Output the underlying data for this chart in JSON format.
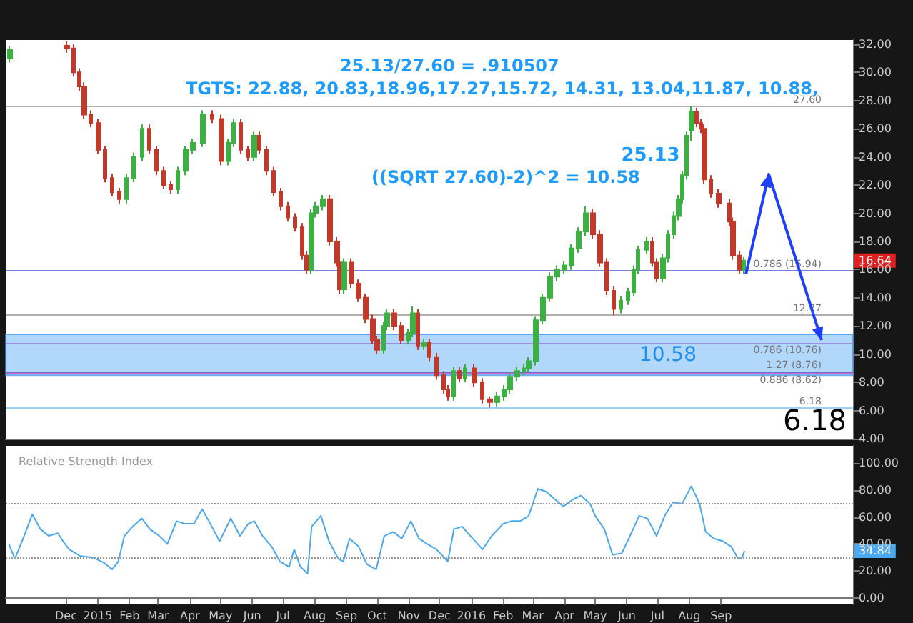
{
  "chart_data": [
    {
      "type": "candlestick",
      "marker": "none",
      "tick_labels": "y",
      "grid": false,
      "xlim": [
        "2014-10-03",
        "2017-01-08"
      ],
      "ylim": [
        4,
        32.3
      ],
      "yticks": [
        {
          "value": 4,
          "label": "4.00"
        },
        {
          "value": 6,
          "label": "6.00"
        },
        {
          "value": 8,
          "label": "8.00"
        },
        {
          "value": 10,
          "label": "10.00"
        },
        {
          "value": 12,
          "label": "12.00"
        },
        {
          "value": 14,
          "label": "14.00"
        },
        {
          "value": 16,
          "label": "16.00"
        },
        {
          "value": 18,
          "label": "18.00"
        },
        {
          "value": 20,
          "label": "20.00"
        },
        {
          "value": 22,
          "label": "22.00"
        },
        {
          "value": 24,
          "label": "24.00"
        },
        {
          "value": 26,
          "label": "26.00"
        },
        {
          "value": 28,
          "label": "28.00"
        },
        {
          "value": 30,
          "label": "30.00"
        },
        {
          "value": 32,
          "label": "32.00"
        }
      ],
      "x": [
        "2014-10-07",
        "2014-12-02",
        "2014-12-08",
        "2014-12-14",
        "2014-12-19",
        "2014-12-25",
        "2015-01-02",
        "2015-01-08",
        "2015-01-15",
        "2015-01-22",
        "2015-01-29",
        "2015-02-05",
        "2015-02-13",
        "2015-02-20",
        "2015-02-27",
        "2015-03-06",
        "2015-03-13",
        "2015-03-20",
        "2015-03-28",
        "2015-04-04",
        "2015-04-14",
        "2015-04-23",
        "2015-05-02",
        "2015-05-09",
        "2015-05-14",
        "2015-05-21",
        "2015-05-28",
        "2015-06-03",
        "2015-06-08",
        "2015-06-15",
        "2015-06-22",
        "2015-06-29",
        "2015-07-06",
        "2015-07-13",
        "2015-07-20",
        "2015-07-24",
        "2015-07-29",
        "2015-08-02",
        "2015-08-09",
        "2015-08-16",
        "2015-08-23",
        "2015-08-26",
        "2015-08-30",
        "2015-09-06",
        "2015-09-13",
        "2015-09-20",
        "2015-09-27",
        "2015-10-01",
        "2015-10-07",
        "2015-10-11",
        "2015-10-18",
        "2015-10-25",
        "2015-11-01",
        "2015-11-05",
        "2015-11-10",
        "2015-11-16",
        "2015-11-21",
        "2015-11-28",
        "2015-12-05",
        "2015-12-09",
        "2015-12-15",
        "2015-12-20",
        "2015-12-26",
        "2016-01-04",
        "2016-01-12",
        "2016-01-19",
        "2016-01-26",
        "2016-02-02",
        "2016-02-08",
        "2016-02-15",
        "2016-02-21",
        "2016-02-26",
        "2016-03-04",
        "2016-03-11",
        "2016-03-18",
        "2016-03-25",
        "2016-04-01",
        "2016-04-08",
        "2016-04-15",
        "2016-04-22",
        "2016-04-29",
        "2016-05-06",
        "2016-05-12",
        "2016-05-19",
        "2016-05-26",
        "2016-06-02",
        "2016-06-08",
        "2016-06-12",
        "2016-06-20",
        "2016-06-26",
        "2016-06-30",
        "2016-07-06",
        "2016-07-11",
        "2016-07-17",
        "2016-07-22",
        "2016-07-25",
        "2016-07-29",
        "2016-08-03",
        "2016-08-08",
        "2016-08-12",
        "2016-08-16",
        "2016-08-22",
        "2016-08-30",
        "2016-09-09",
        "2016-09-13",
        "2016-09-19",
        "2016-09-23"
      ],
      "ohlc": [
        [
          31.0,
          31.9,
          30.7,
          31.6
        ],
        [
          31.9,
          32.2,
          31.4,
          31.7
        ],
        [
          31.7,
          32.0,
          29.7,
          30.0
        ],
        [
          30.0,
          30.3,
          28.7,
          29.0
        ],
        [
          29.0,
          29.3,
          26.7,
          27.0
        ],
        [
          27.0,
          27.3,
          26.1,
          26.4
        ],
        [
          26.4,
          26.7,
          24.2,
          24.5
        ],
        [
          24.5,
          24.8,
          22.2,
          22.5
        ],
        [
          22.5,
          22.8,
          21.2,
          21.5
        ],
        [
          21.5,
          21.8,
          20.7,
          21.0
        ],
        [
          21.0,
          22.8,
          20.7,
          22.5
        ],
        [
          22.5,
          24.3,
          22.2,
          24.0
        ],
        [
          24.0,
          26.3,
          23.7,
          26.0
        ],
        [
          26.0,
          26.3,
          24.2,
          24.5
        ],
        [
          24.5,
          24.8,
          22.7,
          23.0
        ],
        [
          23.0,
          23.3,
          21.7,
          22.0
        ],
        [
          22.0,
          22.3,
          21.4,
          21.7
        ],
        [
          21.7,
          23.3,
          21.4,
          23.0
        ],
        [
          23.0,
          24.8,
          22.7,
          24.5
        ],
        [
          24.5,
          25.3,
          24.2,
          25.0
        ],
        [
          25.0,
          27.3,
          24.7,
          27.0
        ],
        [
          27.0,
          27.3,
          26.4,
          26.7
        ],
        [
          26.7,
          27.0,
          23.4,
          23.7
        ],
        [
          23.7,
          25.3,
          23.4,
          25.0
        ],
        [
          25.0,
          26.7,
          24.7,
          26.4
        ],
        [
          26.4,
          26.7,
          24.2,
          24.5
        ],
        [
          24.5,
          24.8,
          23.7,
          24.0
        ],
        [
          24.0,
          25.8,
          23.7,
          25.5
        ],
        [
          25.5,
          25.8,
          24.2,
          24.5
        ],
        [
          24.5,
          24.8,
          22.7,
          23.0
        ],
        [
          23.0,
          23.3,
          21.2,
          21.5
        ],
        [
          21.5,
          21.8,
          20.2,
          20.5
        ],
        [
          20.5,
          20.8,
          19.4,
          19.7
        ],
        [
          19.7,
          20.0,
          18.7,
          19.0
        ],
        [
          19.0,
          19.3,
          16.7,
          17.0
        ],
        [
          17.0,
          17.3,
          15.7,
          16.0
        ],
        [
          16.0,
          20.3,
          15.7,
          20.0
        ],
        [
          20.0,
          20.8,
          19.7,
          20.5
        ],
        [
          20.5,
          21.3,
          20.2,
          21.0
        ],
        [
          21.0,
          21.3,
          17.7,
          18.0
        ],
        [
          18.0,
          18.3,
          16.2,
          16.5
        ],
        [
          16.5,
          16.8,
          14.3,
          14.6
        ],
        [
          14.6,
          16.8,
          14.3,
          16.5
        ],
        [
          16.5,
          16.8,
          14.7,
          15.0
        ],
        [
          15.0,
          15.3,
          13.7,
          14.0
        ],
        [
          14.0,
          14.3,
          12.2,
          12.5
        ],
        [
          12.5,
          12.8,
          10.7,
          11.0
        ],
        [
          11.0,
          11.3,
          10.0,
          10.3
        ],
        [
          10.3,
          12.3,
          10.0,
          12.0
        ],
        [
          12.0,
          13.2,
          11.7,
          12.9
        ],
        [
          12.9,
          13.2,
          11.7,
          12.0
        ],
        [
          12.0,
          12.3,
          10.7,
          11.0
        ],
        [
          11.0,
          11.8,
          10.7,
          11.5
        ],
        [
          11.5,
          13.4,
          11.2,
          12.9
        ],
        [
          12.9,
          13.2,
          10.3,
          10.6
        ],
        [
          10.6,
          11.1,
          10.3,
          10.8
        ],
        [
          10.8,
          11.1,
          9.5,
          9.8
        ],
        [
          9.8,
          10.1,
          8.2,
          8.5
        ],
        [
          8.5,
          8.8,
          7.2,
          7.5
        ],
        [
          7.5,
          7.8,
          6.7,
          7.0
        ],
        [
          7.0,
          9.1,
          6.7,
          8.8
        ],
        [
          8.8,
          9.1,
          8.0,
          8.3
        ],
        [
          8.3,
          9.3,
          8.0,
          9.0
        ],
        [
          9.0,
          9.3,
          7.7,
          8.0
        ],
        [
          8.0,
          8.3,
          6.5,
          6.8
        ],
        [
          6.8,
          7.0,
          6.2,
          6.6
        ],
        [
          6.6,
          7.3,
          6.3,
          7.0
        ],
        [
          7.0,
          7.8,
          6.7,
          7.5
        ],
        [
          7.5,
          8.7,
          7.2,
          8.4
        ],
        [
          8.4,
          9.1,
          8.1,
          8.8
        ],
        [
          8.8,
          9.3,
          8.5,
          9.0
        ],
        [
          9.0,
          9.8,
          8.7,
          9.5
        ],
        [
          9.5,
          12.7,
          9.2,
          12.4
        ],
        [
          12.4,
          14.3,
          12.1,
          14.0
        ],
        [
          14.0,
          15.8,
          13.7,
          15.5
        ],
        [
          15.5,
          16.3,
          15.2,
          16.0
        ],
        [
          16.0,
          16.6,
          15.7,
          16.3
        ],
        [
          16.3,
          17.8,
          16.0,
          17.5
        ],
        [
          17.5,
          19.0,
          17.2,
          18.7
        ],
        [
          18.7,
          20.5,
          18.4,
          20.0
        ],
        [
          20.0,
          20.3,
          18.2,
          18.5
        ],
        [
          18.5,
          18.8,
          16.2,
          16.5
        ],
        [
          16.5,
          16.8,
          14.2,
          14.5
        ],
        [
          14.5,
          14.8,
          12.77,
          13.2
        ],
        [
          13.2,
          14.1,
          12.9,
          13.8
        ],
        [
          13.8,
          14.7,
          13.5,
          14.4
        ],
        [
          14.4,
          16.3,
          14.1,
          16.0
        ],
        [
          16.0,
          17.7,
          15.7,
          17.4
        ],
        [
          17.4,
          18.3,
          17.1,
          18.0
        ],
        [
          18.0,
          18.3,
          16.2,
          16.5
        ],
        [
          16.5,
          16.8,
          15.1,
          15.4
        ],
        [
          15.4,
          17.1,
          15.1,
          16.8
        ],
        [
          16.8,
          18.8,
          16.5,
          18.5
        ],
        [
          18.5,
          20.1,
          18.2,
          19.8
        ],
        [
          19.8,
          21.3,
          19.5,
          21.0
        ],
        [
          21.0,
          23.0,
          20.7,
          22.7
        ],
        [
          22.7,
          25.8,
          22.4,
          25.5
        ],
        [
          25.9,
          27.6,
          25.13,
          27.2
        ],
        [
          27.2,
          27.5,
          26.1,
          26.4
        ],
        [
          26.4,
          26.7,
          25.7,
          26.0
        ],
        [
          26.0,
          26.3,
          22.1,
          22.4
        ],
        [
          22.4,
          22.7,
          21.1,
          21.4
        ],
        [
          21.4,
          21.7,
          20.4,
          20.7
        ],
        [
          20.7,
          21.0,
          19.1,
          19.4
        ],
        [
          19.4,
          19.7,
          16.7,
          17.0
        ],
        [
          17.0,
          17.3,
          15.7,
          16.0
        ],
        [
          16.0,
          16.9,
          15.7,
          16.64
        ]
      ],
      "ref_lines": [
        {
          "axis": "y",
          "value": 27.6,
          "label": "27.60",
          "color": "#b0b0b0"
        },
        {
          "axis": "y",
          "value": 15.94,
          "label": "0.786 (15.94)",
          "color": "#7b7bd8"
        },
        {
          "axis": "y",
          "value": 12.77,
          "label": "12.77",
          "color": "#b0b0b0"
        },
        {
          "axis": "y",
          "value": 10.76,
          "label": "0.786 (10.76)",
          "color": "#9a8fe0"
        },
        {
          "axis": "y",
          "value": 8.76,
          "label": "1.27 (8.76)",
          "color": "#6b6bd0"
        },
        {
          "axis": "y",
          "value": 8.62,
          "label": "0.886 (8.62)",
          "color": "#d36bd3"
        },
        {
          "axis": "y",
          "value": 6.18,
          "label": "6.18",
          "color": "#9fd0f0"
        }
      ],
      "bands": [
        {
          "axis": "y",
          "from": 8.5,
          "to": 11.4,
          "label": "10.58",
          "color": "#90c8f8"
        }
      ],
      "annotations": [
        "25.13/27.60 = .910507",
        "TGTS: 22.88, 20.83,18.96,17.27,15.72, 14.31, 13.04,11.87, 10.88,",
        "((SQRT 27.60)-2)^2 = 10.58",
        "6.18",
        {
          "text": "25.13",
          "x": "2016-08-03",
          "y": 25.13
        },
        {
          "text": "16.64",
          "y": 16.64
        }
      ]
    },
    {
      "type": "line",
      "title": "Relative Strength Index",
      "marker": "none",
      "xlim": [
        "2014-10-03",
        "2017-01-08"
      ],
      "ylim": [
        -5,
        113
      ],
      "yticks": [
        {
          "value": 0,
          "label": "0.00"
        },
        {
          "value": 20,
          "label": "20.00"
        },
        {
          "value": 40,
          "label": "40.00"
        },
        {
          "value": 60,
          "label": "60.00"
        },
        {
          "value": 80,
          "label": "80.00"
        },
        {
          "value": 100,
          "label": "100.00"
        }
      ],
      "xticks": [
        {
          "value": "2014-12-01",
          "label": "Dec"
        },
        {
          "value": "2015-01-01",
          "label": "2015"
        },
        {
          "value": "2015-02-01",
          "label": "Feb"
        },
        {
          "value": "2015-03-01",
          "label": "Mar"
        },
        {
          "value": "2015-04-01",
          "label": "Apr"
        },
        {
          "value": "2015-05-01",
          "label": "May"
        },
        {
          "value": "2015-06-01",
          "label": "Jun"
        },
        {
          "value": "2015-07-01",
          "label": "Jul"
        },
        {
          "value": "2015-08-01",
          "label": "Aug"
        },
        {
          "value": "2015-09-01",
          "label": "Sep"
        },
        {
          "value": "2015-10-01",
          "label": "Oct"
        },
        {
          "value": "2015-11-01",
          "label": "Nov"
        },
        {
          "value": "2015-12-01",
          "label": "Dec"
        },
        {
          "value": "2016-01-01",
          "label": "2016"
        },
        {
          "value": "2016-02-01",
          "label": "Feb"
        },
        {
          "value": "2016-03-01",
          "label": "Mar"
        },
        {
          "value": "2016-04-01",
          "label": "Apr"
        },
        {
          "value": "2016-05-01",
          "label": "May"
        },
        {
          "value": "2016-06-01",
          "label": "Jun"
        },
        {
          "value": "2016-07-01",
          "label": "Jul"
        },
        {
          "value": "2016-08-01",
          "label": "Aug"
        },
        {
          "value": "2016-09-01",
          "label": "Sep"
        }
      ],
      "series": [
        {
          "color": "#4aa8f0",
          "x": [
            "2014-10-06",
            "2014-10-12",
            "2014-10-20",
            "2014-10-29",
            "2014-11-06",
            "2014-11-14",
            "2014-11-23",
            "2014-11-28",
            "2014-12-04",
            "2014-12-15",
            "2014-12-27",
            "2015-01-07",
            "2015-01-15",
            "2015-01-21",
            "2015-01-27",
            "2015-02-04",
            "2015-02-13",
            "2015-02-21",
            "2015-03-02",
            "2015-03-10",
            "2015-03-19",
            "2015-03-27",
            "2015-04-05",
            "2015-04-13",
            "2015-04-21",
            "2015-04-30",
            "2015-05-11",
            "2015-05-20",
            "2015-05-28",
            "2015-06-03",
            "2015-06-11",
            "2015-06-20",
            "2015-06-28",
            "2015-07-07",
            "2015-07-12",
            "2015-07-18",
            "2015-07-25",
            "2015-07-29",
            "2015-08-07",
            "2015-08-15",
            "2015-08-24",
            "2015-08-29",
            "2015-09-04",
            "2015-09-13",
            "2015-09-21",
            "2015-09-30",
            "2015-10-08",
            "2015-10-17",
            "2015-10-25",
            "2015-11-03",
            "2015-11-11",
            "2015-11-19",
            "2015-11-28",
            "2015-12-09",
            "2015-12-15",
            "2015-12-23",
            "2015-12-31",
            "2016-01-12",
            "2016-01-21",
            "2016-02-01",
            "2016-02-09",
            "2016-02-18",
            "2016-02-26",
            "2016-03-06",
            "2016-03-14",
            "2016-03-23",
            "2016-03-31",
            "2016-04-09",
            "2016-04-17",
            "2016-04-26",
            "2016-05-01",
            "2016-05-10",
            "2016-05-18",
            "2016-05-27",
            "2016-06-04",
            "2016-06-13",
            "2016-06-21",
            "2016-06-30",
            "2016-07-08",
            "2016-07-16",
            "2016-07-25",
            "2016-08-03",
            "2016-08-11",
            "2016-08-17",
            "2016-08-25",
            "2016-09-03",
            "2016-09-11",
            "2016-09-17",
            "2016-09-21",
            "2016-09-24"
          ],
          "values": [
            40,
            29,
            44,
            62,
            51,
            46,
            48,
            42,
            36,
            31,
            30,
            26,
            21,
            27,
            46,
            53,
            59,
            51,
            46,
            40,
            57,
            55,
            55,
            66,
            55,
            42,
            59,
            46,
            55,
            57,
            46,
            38,
            27,
            23,
            36,
            23,
            18,
            53,
            61,
            42,
            29,
            27,
            44,
            38,
            25,
            21,
            46,
            49,
            44,
            57,
            44,
            40,
            36,
            27,
            51,
            53,
            46,
            36,
            46,
            55,
            57,
            57,
            61,
            81,
            79,
            73,
            68,
            73,
            76,
            70,
            61,
            51,
            32,
            33,
            46,
            61,
            59,
            46,
            61,
            71,
            70,
            83,
            70,
            49,
            44,
            42,
            38,
            30,
            29,
            34.84
          ]
        }
      ],
      "ref_lines": [
        {
          "axis": "y",
          "value": 70,
          "color": "#999999",
          "line_style": "dotted"
        },
        {
          "axis": "y",
          "value": 30,
          "color": "#999999",
          "line_style": "dotted"
        }
      ],
      "annotations": [
        {
          "text": "34.84",
          "y": 34.84
        }
      ]
    }
  ]
}
